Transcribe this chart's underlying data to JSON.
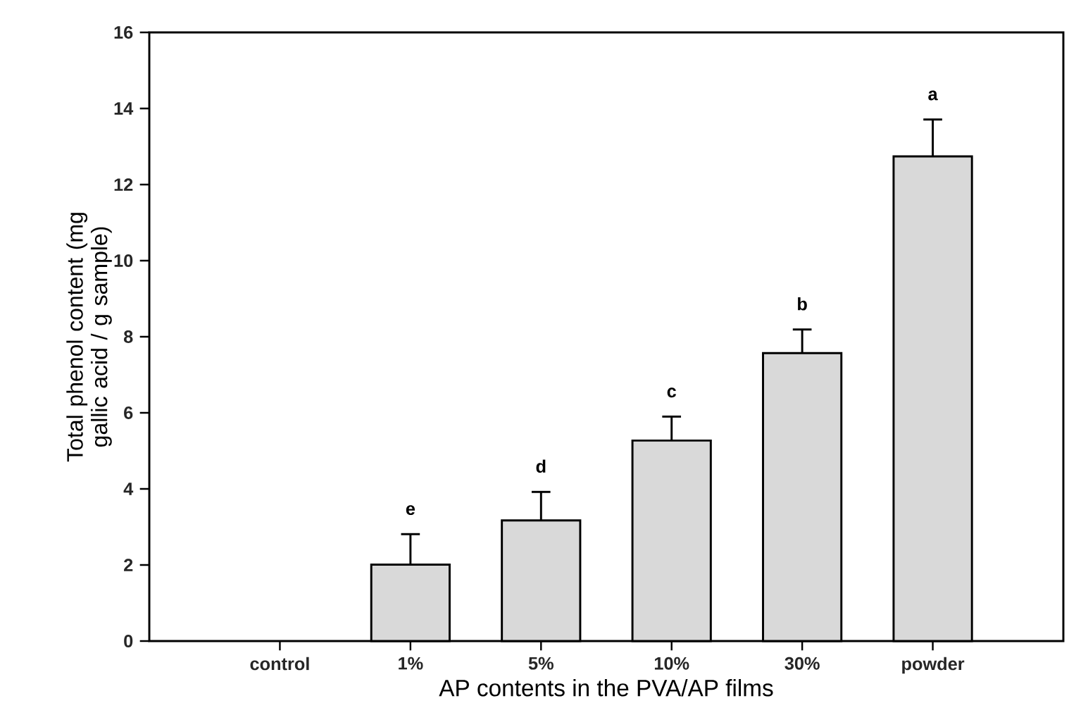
{
  "chart_data": {
    "type": "bar",
    "xlabel": "AP contents in the PVA/AP films",
    "ylabel": "Total phenol content (mg gallic acid / g sample)",
    "categories": [
      "control",
      "1%",
      "5%",
      "10%",
      "30%",
      "powder"
    ],
    "values": [
      null,
      2.01,
      3.17,
      5.27,
      7.57,
      12.74
    ],
    "errors": [
      null,
      0.8,
      0.75,
      0.63,
      0.62,
      0.97
    ],
    "color": "#d9d9d9",
    "ylim": [
      0,
      16
    ],
    "yticks": [
      0,
      2,
      4,
      6,
      8,
      10,
      12,
      14,
      16
    ],
    "grid": false,
    "annotations": [
      {
        "text": "e",
        "x": "1%",
        "y": 2.81
      },
      {
        "text": "d",
        "x": "5%",
        "y": 3.92
      },
      {
        "text": "c",
        "x": "10%",
        "y": 5.9
      },
      {
        "text": "b",
        "x": "30%",
        "y": 8.19
      },
      {
        "text": "a",
        "x": "powder",
        "y": 13.71
      }
    ]
  }
}
